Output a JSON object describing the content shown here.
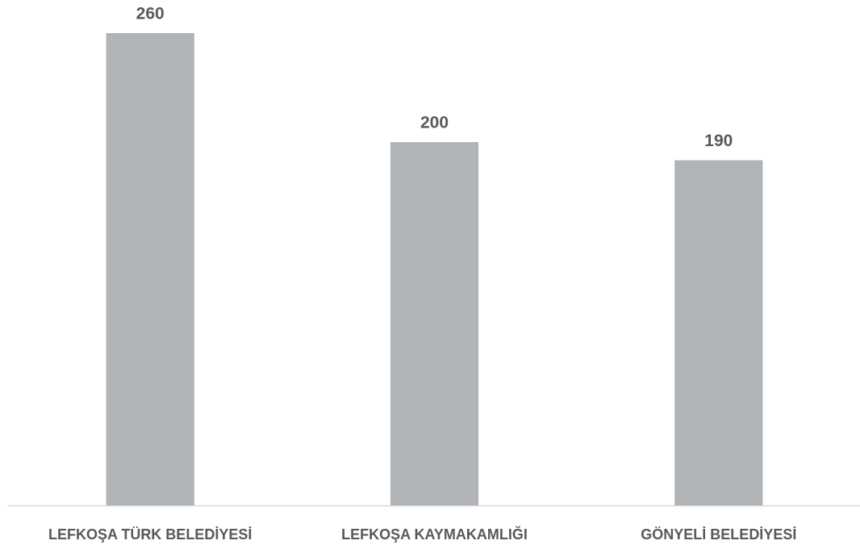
{
  "chart_data": {
    "type": "bar",
    "categories": [
      "LEFKOŞA TÜRK BELEDİYESİ",
      "LEFKOŞA KAYMAKAMLIĞI",
      "GÖNYELİ BELEDİYESİ"
    ],
    "values": [
      260,
      200,
      190
    ],
    "color": "#b1b4b7"
  }
}
